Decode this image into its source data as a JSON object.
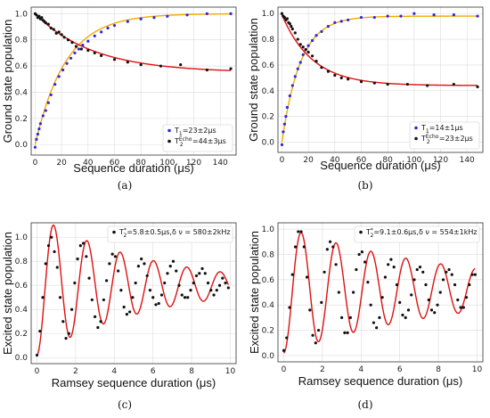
{
  "chart_data": [
    {
      "id": "a",
      "type": "scatter",
      "panel_label": "(a)",
      "xlabel": "Sequence duration (μs)",
      "ylabel": "Ground state population",
      "xlim": [
        -3,
        152
      ],
      "ylim": [
        -0.08,
        1.05
      ],
      "xticks": [
        0,
        20,
        40,
        60,
        80,
        100,
        120,
        140
      ],
      "yticks": [
        0.0,
        0.2,
        0.4,
        0.6,
        0.8,
        1.0
      ],
      "grid": true,
      "legend_position": "bottom-right",
      "series": [
        {
          "legend": "T1=23±2μs",
          "label_main": "T",
          "label_sub": "1",
          "label_rest": "=23±2μs",
          "marker_color": "#2a2ae0",
          "fit_color": "#f2a900",
          "fit": {
            "model": "rise",
            "a": 1.0,
            "tau": 23,
            "c": 0
          },
          "x": [
            0,
            1,
            2,
            3,
            4,
            6,
            8,
            10,
            12,
            15,
            18,
            21,
            24,
            27,
            30,
            33,
            36,
            40,
            45,
            50,
            55,
            60,
            70,
            80,
            90,
            100,
            115,
            130,
            148
          ],
          "y": [
            -0.02,
            0.04,
            0.08,
            0.12,
            0.16,
            0.22,
            0.26,
            0.32,
            0.38,
            0.46,
            0.52,
            0.57,
            0.62,
            0.66,
            0.7,
            0.73,
            0.76,
            0.79,
            0.83,
            0.86,
            0.89,
            0.91,
            0.94,
            0.96,
            0.97,
            0.98,
            0.99,
            1.0,
            1.0
          ]
        },
        {
          "legend": "T2echo=44±3μs",
          "label_main": "T",
          "label_sub": "2",
          "label_sup": "Echo",
          "label_rest": "=44±3μs",
          "marker_color": "#111111",
          "fit_color": "#e01010",
          "fit": {
            "model": "decay",
            "a": 0.45,
            "tau": 44,
            "c": 0.55
          },
          "x": [
            0,
            1,
            2,
            3,
            4,
            5,
            6,
            7,
            8,
            10,
            12,
            14,
            16,
            18,
            20,
            22,
            25,
            28,
            31,
            35,
            40,
            45,
            50,
            60,
            70,
            80,
            95,
            110,
            130,
            148
          ],
          "y": [
            1.0,
            0.99,
            0.97,
            0.98,
            0.96,
            0.97,
            0.95,
            0.94,
            0.93,
            0.92,
            0.89,
            0.88,
            0.85,
            0.86,
            0.84,
            0.82,
            0.8,
            0.78,
            0.75,
            0.73,
            0.72,
            0.7,
            0.68,
            0.65,
            0.63,
            0.61,
            0.6,
            0.61,
            0.57,
            0.58
          ]
        }
      ]
    },
    {
      "id": "b",
      "type": "scatter",
      "panel_label": "(b)",
      "xlabel": "Sequence duration (μs)",
      "ylabel": "Ground state population",
      "xlim": [
        -3,
        152
      ],
      "ylim": [
        -0.08,
        1.05
      ],
      "xticks": [
        0,
        20,
        40,
        60,
        80,
        100,
        120,
        140
      ],
      "yticks": [
        0.0,
        0.2,
        0.4,
        0.6,
        0.8,
        1.0
      ],
      "grid": true,
      "legend_position": "bottom-right",
      "series": [
        {
          "legend": "T1=14±1μs",
          "label_main": "T",
          "label_sub": "1",
          "label_rest": "=14±1μs",
          "marker_color": "#2a2ae0",
          "fit_color": "#f2a900",
          "fit": {
            "model": "rise",
            "a": 0.98,
            "tau": 14,
            "c": 0
          },
          "x": [
            0,
            1,
            2,
            3,
            4,
            6,
            8,
            10,
            12,
            14,
            16,
            18,
            20,
            23,
            26,
            30,
            35,
            40,
            45,
            50,
            60,
            70,
            80,
            90,
            100,
            115,
            130,
            148
          ],
          "y": [
            -0.02,
            0.08,
            0.14,
            0.2,
            0.27,
            0.36,
            0.44,
            0.51,
            0.57,
            0.62,
            0.68,
            0.72,
            0.75,
            0.79,
            0.83,
            0.86,
            0.9,
            0.93,
            0.94,
            0.95,
            0.97,
            0.97,
            0.98,
            0.98,
            1.0,
            0.99,
            0.99,
            0.98
          ]
        },
        {
          "legend": "T2echo=23±2μs",
          "label_main": "T",
          "label_sub": "2",
          "label_sup": "Echo",
          "label_rest": "=23±2μs",
          "marker_color": "#111111",
          "fit_color": "#e01010",
          "fit": {
            "model": "decay",
            "a": 0.55,
            "tau": 23,
            "c": 0.44
          },
          "x": [
            0,
            1,
            2,
            3,
            4,
            5,
            6,
            7,
            8,
            10,
            12,
            14,
            16,
            18,
            20,
            23,
            26,
            30,
            35,
            40,
            45,
            50,
            60,
            70,
            80,
            95,
            110,
            130,
            148
          ],
          "y": [
            1.0,
            0.98,
            0.97,
            0.95,
            0.96,
            0.93,
            0.92,
            0.9,
            0.88,
            0.85,
            0.8,
            0.76,
            0.74,
            0.72,
            0.7,
            0.67,
            0.63,
            0.58,
            0.55,
            0.52,
            0.5,
            0.49,
            0.47,
            0.46,
            0.45,
            0.45,
            0.44,
            0.45,
            0.43
          ]
        }
      ]
    },
    {
      "id": "c",
      "type": "scatter",
      "panel_label": "(c)",
      "xlabel": "Ramsey sequence duration (μs)",
      "ylabel": "Excited  state population",
      "xlim": [
        -0.3,
        10.3
      ],
      "ylim": [
        -0.05,
        1.12
      ],
      "xticks": [
        0,
        2,
        4,
        6,
        8,
        10
      ],
      "yticks": [
        0.0,
        0.2,
        0.4,
        0.6,
        0.8,
        1.0
      ],
      "grid": true,
      "legend_position": "top-right",
      "series": [
        {
          "legend": "T2*=5.8±0.5μs, δν = 580±2kHz",
          "label_main": "T",
          "label_sub": "2",
          "label_sup": "*",
          "label_rest": "=5.8±0.5μs,δ ν = 580±2kHz",
          "marker_color": "#111111",
          "fit_color": "#e01010",
          "fit": {
            "model": "ramsey",
            "c": 0.6,
            "a": 0.58,
            "tau": 5.8,
            "f": 0.58,
            "phase": 3.14159
          },
          "x": [
            0.0,
            0.15,
            0.3,
            0.45,
            0.6,
            0.75,
            0.9,
            1.05,
            1.2,
            1.35,
            1.5,
            1.65,
            1.8,
            1.95,
            2.1,
            2.25,
            2.4,
            2.55,
            2.7,
            2.85,
            3.0,
            3.15,
            3.3,
            3.45,
            3.6,
            3.75,
            3.9,
            4.05,
            4.2,
            4.35,
            4.5,
            4.65,
            4.8,
            4.95,
            5.1,
            5.25,
            5.4,
            5.55,
            5.7,
            5.85,
            6.0,
            6.15,
            6.3,
            6.45,
            6.6,
            6.75,
            6.9,
            7.05,
            7.2,
            7.35,
            7.5,
            7.65,
            7.8,
            7.95,
            8.1,
            8.25,
            8.4,
            8.55,
            8.7,
            8.85,
            9.0,
            9.15,
            9.3,
            9.45,
            9.6,
            9.75,
            9.9
          ],
          "y": [
            0.02,
            0.22,
            0.5,
            0.78,
            0.93,
            1.0,
            0.88,
            0.75,
            0.5,
            0.3,
            0.16,
            0.2,
            0.4,
            0.62,
            0.82,
            0.93,
            0.95,
            0.84,
            0.66,
            0.48,
            0.34,
            0.25,
            0.3,
            0.48,
            0.64,
            0.78,
            0.86,
            0.84,
            0.72,
            0.56,
            0.42,
            0.36,
            0.38,
            0.5,
            0.62,
            0.76,
            0.82,
            0.78,
            0.68,
            0.56,
            0.5,
            0.44,
            0.45,
            0.52,
            0.62,
            0.7,
            0.76,
            0.8,
            0.72,
            0.6,
            0.52,
            0.5,
            0.5,
            0.56,
            0.62,
            0.68,
            0.7,
            0.74,
            0.7,
            0.62,
            0.56,
            0.52,
            0.56,
            0.6,
            0.66,
            0.62,
            0.58
          ]
        }
      ]
    },
    {
      "id": "d",
      "type": "scatter",
      "panel_label": "(d)",
      "xlabel": "Ramsey sequence duration (μs)",
      "ylabel": "Excited  state population",
      "xlim": [
        -0.3,
        10.3
      ],
      "ylim": [
        -0.05,
        1.05
      ],
      "xticks": [
        0,
        2,
        4,
        6,
        8,
        10
      ],
      "yticks": [
        0.0,
        0.2,
        0.4,
        0.6,
        0.8,
        1.0
      ],
      "grid": true,
      "legend_position": "top-right",
      "series": [
        {
          "legend": "T2*=9.1±0.6μs, δν = 554±1kHz",
          "label_main": "T",
          "label_sub": "2",
          "label_sup": "*",
          "label_rest": "=9.1±0.6μs,δ ν = 554±1kHz",
          "marker_color": "#111111",
          "fit_color": "#e01010",
          "fit": {
            "model": "ramsey",
            "c": 0.52,
            "a": 0.5,
            "tau": 9.1,
            "f": 0.554,
            "phase": 3.14159
          },
          "x": [
            0.0,
            0.15,
            0.3,
            0.45,
            0.6,
            0.75,
            0.9,
            1.05,
            1.2,
            1.35,
            1.5,
            1.65,
            1.8,
            1.95,
            2.1,
            2.25,
            2.4,
            2.55,
            2.7,
            2.85,
            3.0,
            3.15,
            3.3,
            3.45,
            3.6,
            3.75,
            3.9,
            4.05,
            4.2,
            4.35,
            4.5,
            4.65,
            4.8,
            4.95,
            5.1,
            5.25,
            5.4,
            5.55,
            5.7,
            5.85,
            6.0,
            6.15,
            6.3,
            6.45,
            6.6,
            6.75,
            6.9,
            7.05,
            7.2,
            7.35,
            7.5,
            7.65,
            7.8,
            7.95,
            8.1,
            8.25,
            8.4,
            8.55,
            8.7,
            8.85,
            9.0,
            9.15,
            9.3,
            9.45,
            9.6,
            9.75,
            9.9
          ],
          "y": [
            0.04,
            0.14,
            0.38,
            0.64,
            0.86,
            0.98,
            0.98,
            0.86,
            0.62,
            0.36,
            0.16,
            0.1,
            0.2,
            0.42,
            0.66,
            0.84,
            0.9,
            0.86,
            0.72,
            0.5,
            0.3,
            0.18,
            0.18,
            0.3,
            0.5,
            0.68,
            0.8,
            0.82,
            0.74,
            0.58,
            0.4,
            0.26,
            0.22,
            0.3,
            0.46,
            0.62,
            0.72,
            0.76,
            0.7,
            0.56,
            0.42,
            0.32,
            0.3,
            0.36,
            0.48,
            0.6,
            0.68,
            0.7,
            0.66,
            0.56,
            0.44,
            0.36,
            0.34,
            0.4,
            0.5,
            0.6,
            0.66,
            0.68,
            0.64,
            0.56,
            0.44,
            0.38,
            0.38,
            0.46,
            0.56,
            0.64,
            0.64
          ]
        }
      ]
    }
  ]
}
